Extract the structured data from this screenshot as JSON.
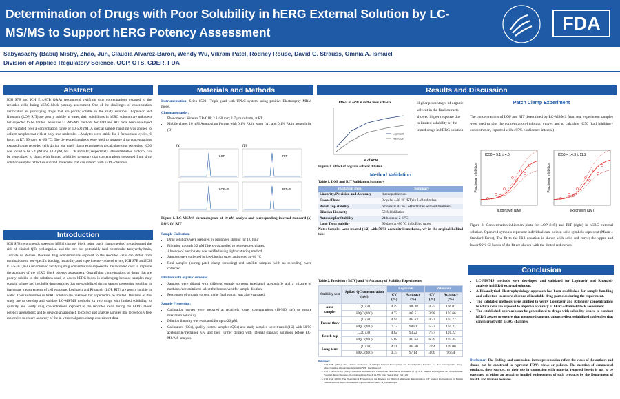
{
  "header": {
    "title": "Determination of Drugs with Poor Solubility in hERG External Solution by LC-MS/MS to Support hERG Potency Assessment",
    "authors": "Sabyasachy (Babu) Mistry, Zhao, Jun, Claudia Alvarez-Baron, Wendy Wu, Vikram Patel, Rodney Rouse, David G. Strauss, Omnia A. Ismaiel",
    "affiliation": "Division of Applied Regulatory Science, OCP, OTS, CDER, FDA",
    "logo": "FDA"
  },
  "abstract": {
    "heading": "Abstract",
    "text": "ICH S7B and ICH E14/S7B Q&As recommend verifying drug concentrations exposed to the recorded cells during hERG block potency assessment. One of the challenges of concentration verification is quantifying drugs that are poorly soluble in the study solutions. Lopinavir and Ritonavir (LOP, RIT) are poorly soluble in water, their solubilities in hERG solution are unknown but expected to be limited. Sensitive LC-MS/MS methods for LOP and RIT have been developed and validated over a concentration range of 10-500 nM. A special sample handling was applied to collect samples that reflect only free molecules . Analytes were stable for 3 freeze/thaw cycles, 6 hours at RT, 99 days at -80 °C. The developed methods were used to measure drug concentrations exposed to the recorded cells during real patch clamp experiments to calculate drug potencies; IC50 was found to be 5.1 µM and 14.3 µM, for LOP and RIT, respectively. The established protocol can be generalized to drugs with limited solubility to ensure that concentrations measured from drug solution samples reflect solubilized molecules that can interact with hERG channels."
  },
  "introduction": {
    "heading": "Introduction",
    "text": "ICH S7B recommends assessing hERG channel block using patch clamp method to understand the risk of clinical QTc prolongation and the rare but potentially fatal ventricular tachyarrhythmia, Torsade de Pointes. Because drug concentrations exposed to the recorded cells can differ from nominal due to non-specific binding, instability, and experimenter-induced errors, ICH S7B and ICH E14/S7B Q&As recommend verifying drug concentrations exposed to the recorded cells to improve the accuracy of the hERG block potency assessment. Quantifying concentrations of drugs that are poorly soluble in the solutions used to assess hERG block is challenging because samples may contain solutes and insoluble drug particles that are solubilized during sample processing resulting in inaccurate measurements of cell exposure. Lopinavir and Ritonavir (LOP, RIT) are poorly soluble in water. Their solubilities in hERG solution are unknown but expected to be limited. The aims of this study are to develop and validate LC-MS/MS methods for two drugs with limited solubility, to quantify and verify drug concentrations exposed to the recorded cells during the hERG block potency assessment; and to develop an approach to collect and analyze samples that reflect only free molecules to ensure accuracy of the in-vitro real patch clamp experiment data."
  },
  "methods": {
    "heading": "Materials and Methods",
    "instrumentation_label": "Instrumentation:",
    "instrumentation": "Sciex 6500+ Triple-quad with UPLC system, using positive Electrospray MRM mode.",
    "chromatography_label": "Chromatography:",
    "chromatography": [
      "Phenomenex Kinetex XB-C18; 2.1x50 mm; 1.7 µm column, at RT",
      "Mobile phase: 10 mM Ammonium Format with 0.1% FA in water (A), and 0.1% FA in acetonitrile (B)"
    ],
    "figure1": {
      "panel_a": "(a)",
      "panel_b": "(b)",
      "labels": [
        "LOP",
        "RIT",
        "LOP-IS",
        "RIT-IS"
      ],
      "caption": "Figure 1. LC-MS/MS chromatogram of 10 nM analyte and corresponding internal standard (a) LOP, (b) RIT"
    },
    "collection_label": "Sample Collection:",
    "collection": [
      "Drug solutions were prepared by prolonged stirring for 1.0 hour",
      "Filtration through 0.2 µM filters was applied to remove precipitates.",
      "Absence of precipitates was verified using light scattering method.",
      "Samples were collected in low-binding tubes and stored at -80 °C",
      "Real samples (during patch clamp recording) and satellite samples (with no recording) were collected."
    ],
    "dilution_label": "Dilution with organic solvents:",
    "dilution": [
      "Samples were diluted with different organic solvents (methanol, acetonitrile and a mixture of methanol/acetonitrile to select the best solvent for sample dilution.",
      "Percentage of organic solvent in the final extract was also evaluated."
    ],
    "processing_label": "Sample Processing:",
    "processing": [
      "Calibration curves were prepared at relatively lower concentrations (10-500 nM) to ensure maximum solubility.",
      "Dilution linearity was evaluated for up to 20 µM.",
      "Calibrators (CCs), quality control samples (QCs) and study samples were treated (1:2) with 50/50 acetonitrile/methanol, v/v, and then further diluted with internal standard solutions before LC-MS/MS analysis."
    ]
  },
  "results": {
    "heading": "Results and Discussion",
    "figure2": {
      "title": "Effect of ACN % in the final extracts",
      "legend": [
        "Lopinavir",
        "Ritonavir"
      ],
      "x_label": "% of ACN",
      "caption": "Figure 2. Effect of organic solvent dilution."
    },
    "figure2_note": "Higher percentages of organic solvent in the final extracts showed higher response due to limited solubility of the tested drugs in hERG solution",
    "validation_heading": "Method Validation",
    "table1": {
      "caption": "Table 1. LOP and RIT Validation Summary",
      "header": [
        "Validation Item",
        "Summary"
      ],
      "rows": [
        [
          "Linearity, Precision and Accuracy",
          "4 acceptable runs"
        ],
        [
          "Freeze/Thaw",
          "3 cycles (-80 °C /RT) in LoBind tubes"
        ],
        [
          "Bench Top stability",
          "6 hours at RT in LoBind tubes without treatment"
        ],
        [
          "Dilution Linearity",
          "50-fold dilution"
        ],
        [
          "Autosampler Stability",
          "24 hours at 2-8 °C"
        ],
        [
          "Long Term stability",
          "99 days at -80 °C in LoBind tubes"
        ]
      ],
      "note": "Note: Samples were treated (1:2) with 50/50 acetonitrile/methanol, v/v in the original LoBind tube"
    },
    "table2": {
      "caption": "Table 2. Precision (%CV) and % Accuracy of Stability Experiments",
      "drugs": [
        "Lopinavir",
        "Ritonavir"
      ],
      "header": [
        "Stability test",
        "Spiked QC concentration (nM)",
        "CV (%)",
        "Accuracy (%)",
        "CV (%)",
        "Accuracy (%)"
      ],
      "groups": [
        {
          "test": "Auto-sampler",
          "rows": [
            [
              "LQC (30)",
              "4.49",
              "106.38",
              "4.25",
              "106.01"
            ],
            [
              "HQC (400)",
              "4.72",
              "105.51",
              "3.98",
              "103.66"
            ]
          ]
        },
        {
          "test": "Freeze-thaw",
          "rows": [
            [
              "LQC (30)",
              "4.94",
              "104.63",
              "4.23",
              "107.72"
            ],
            [
              "HQC (400)",
              "7.23",
              "98.81",
              "5.23",
              "104.31"
            ]
          ]
        },
        {
          "test": "Bench-top",
          "rows": [
            [
              "LQC (30)",
              "4.62",
              "93.22",
              "7.57",
              "101.22"
            ],
            [
              "HQC (400)",
              "5.88",
              "102.64",
              "6.29",
              "105.45"
            ]
          ]
        },
        {
          "test": "Long-term",
          "rows": [
            [
              "LQC (30)",
              "4.51",
              "104.60",
              "7.64",
              "109.00"
            ],
            [
              "HQC (400)",
              "3.75",
              "97.14",
              "3.00",
              "96.54"
            ]
          ]
        }
      ]
    },
    "references_label": "References:",
    "references": [
      "ICH S7B. (2005). The Clinical Evaluation of QT/QTc Interval Prolongation and Proarrhythmic Potential for Non-antiarrhythmic Drugs. https://database.ich.org/sites/default/files/S7B_Guideline.pdf",
      "ICH E14/S7B IWG (2022). Questions and Answers: Clinical and Nonclinical Evaluation of QT/QTc Interval Prolongation and Proarrhythmic Potential. https://database.ich.org/sites/default/files/E14-S7B_QAs_Step4_2022_0221.pdf",
      "ICH S7A. (2000). The Non-Clinical Evaluation of the Potential for Delayed Ventricular Repolarization (QT Interval Prolongation) by Human Pharmaceuticals. https://database.ich.org/sites/default/files/S7A_Guideline.pdf"
    ],
    "patch_heading": "Patch Clamp Experiment",
    "patch_text": "The concentrations of LOP and RIT determined by LC-MS/MS from real experiment samples were used to plot the concentration-inhibition curves and to calculate IC50 (half inhibitory concentration, reported with ±95% confidence interval)",
    "figure3": {
      "ic50": [
        "IC50 = 5.1 ± 4.0",
        "IC50 = 14.3 ± 11.2"
      ],
      "x_labels": [
        "[Lopinavir] (µM)",
        "[Ritonavir] (µM)"
      ],
      "y_label": "Fractional inhibition",
      "caption": "Figure 3. Concentration-inhibition plots for LOP (left) and RIT (right) in hERG external solution. Open red symbols represent individual data points, solid symbols represent (Mean ± Standard Error), The fit to the Hill equation is shown with solid red curve; the upper and lower 95% CI bands of the fit are shown with the dotted red curves."
    },
    "conclusion_heading": "Conclusion",
    "conclusion": [
      "LC-MS/MS methods were developed and validated for Lopinavir and Ritonavir analysis in hERG external solution.",
      "A Bioanalytical-Electrophysiology approach has been established for sample handling and collection to ensure absence of insoluble drug particles during the experiment.",
      "The validated methods were applied to verify Lopinavir and Ritonavir concentrations to which cells are exposed to improve accuracy of hERG channel block assessment.",
      "The established approach can be generalized to drugs with solubility issues, to conduct hERG assays to ensure that measured concentrations reflect solubilized molecules that can interact with hERG channels."
    ],
    "disclaimer_label": "Disclaimer:",
    "disclaimer": "The findings and conclusions in this presentation reflect the views of the authors and should not be construed to represent FDA's views or policies. The mention of commercial products, their sources, or their use in connection with material reported herein is not to be construed as either an actual or implied endorsement of such products by the Department of Health and Human Services."
  }
}
